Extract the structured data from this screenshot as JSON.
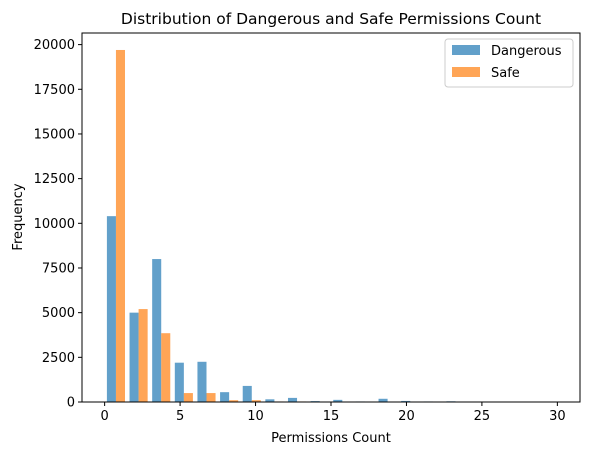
{
  "chart_data": {
    "type": "bar",
    "title": "Distribution of Dangerous and Safe Permissions Count",
    "xlabel": "Permissions Count",
    "ylabel": "Frequency",
    "xlim": [
      -1.5,
      31.5
    ],
    "ylim": [
      0,
      20650
    ],
    "xticks": [
      0,
      5,
      10,
      15,
      20,
      25,
      30
    ],
    "yticks": [
      0,
      2500,
      5000,
      7500,
      10000,
      12500,
      15000,
      17500,
      20000
    ],
    "bin_edges": [
      0,
      1.5,
      3,
      4.5,
      6,
      7.5,
      9,
      10.5,
      12,
      13.5,
      15,
      16.5,
      18,
      19.5,
      21,
      22.5,
      24,
      25.5,
      27,
      28.5,
      30
    ],
    "series": [
      {
        "name": "Dangerous",
        "color": "#1f77b4",
        "values": [
          10400,
          5000,
          8000,
          2200,
          2250,
          550,
          900,
          150,
          230,
          50,
          120,
          30,
          180,
          60,
          30,
          40,
          10,
          5,
          5,
          5
        ]
      },
      {
        "name": "Safe",
        "color": "#ff7f0e",
        "values": [
          19700,
          5200,
          3850,
          500,
          500,
          100,
          100,
          30,
          30,
          10,
          10,
          5,
          5,
          5,
          5,
          3,
          3,
          3,
          3,
          3
        ]
      }
    ],
    "legend": {
      "position": "top-right"
    },
    "grid": false,
    "alpha": 0.7
  }
}
